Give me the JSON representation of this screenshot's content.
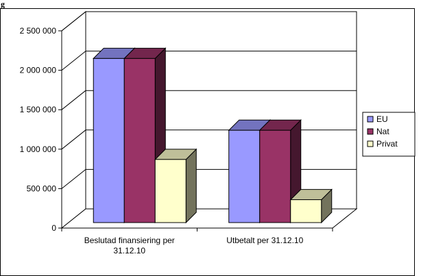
{
  "clipped_label": "g",
  "chart_data": {
    "type": "bar",
    "categories": [
      [
        "Beslutad finansiering per",
        "31.12.10"
      ],
      [
        "Utbetalt per 31.12.10"
      ]
    ],
    "series": [
      {
        "name": "EU",
        "values": [
          2080000,
          1170000
        ]
      },
      {
        "name": "Nat",
        "values": [
          2080000,
          1170000
        ]
      },
      {
        "name": "Privat",
        "values": [
          800000,
          290000
        ]
      }
    ],
    "ylim": [
      0,
      2500000
    ],
    "yticks": [
      0,
      500000,
      1000000,
      1500000,
      2000000,
      2500000
    ],
    "ytick_labels": [
      "0",
      "500 000",
      "1 000 000",
      "1 500 000",
      "2 000 000",
      "2 500 000"
    ],
    "title": "",
    "xlabel": "",
    "ylabel": "",
    "legend_position": "right",
    "colors": {
      "EU": "#9999ff",
      "Nat": "#993366",
      "Privat": "#ffffcc"
    },
    "grid": true,
    "style": "3d-clustered-column"
  }
}
